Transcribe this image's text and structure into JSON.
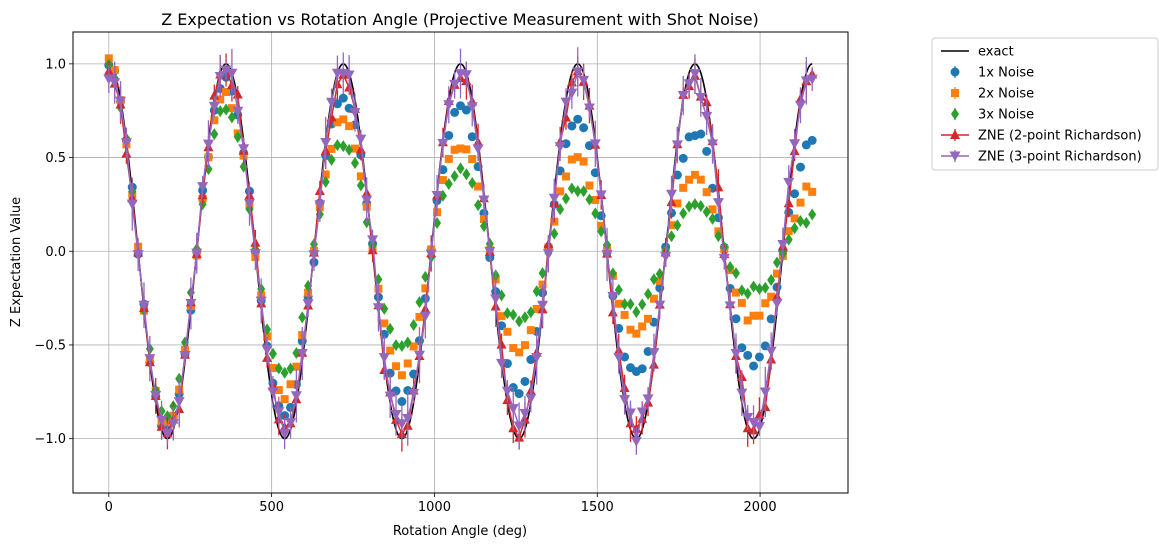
{
  "chart_data": {
    "type": "scatter",
    "title": "Z Expectation vs Rotation Angle (Projective Measurement with Shot Noise)",
    "xlabel": "Rotation Angle (deg)",
    "ylabel": "Z Expectation Value",
    "xlim": [
      -110,
      2270
    ],
    "ylim": [
      -1.29,
      1.17
    ],
    "xticks": [
      0,
      500,
      1000,
      1500,
      2000
    ],
    "yticks": [
      -1.0,
      -0.5,
      0.0,
      0.5,
      1.0
    ],
    "xtick_labels": [
      "0",
      "500",
      "1000",
      "1500",
      "2000"
    ],
    "ytick_labels": [
      "−1.0",
      "−0.5",
      "0.0",
      "0.5",
      "1.0"
    ],
    "grid": true,
    "legend_position": "outside-right",
    "x_range": [
      0,
      2160
    ],
    "num_points": 121,
    "series": [
      {
        "name": "exact",
        "style": "line",
        "color": "#000000",
        "noise_scale": 1
      },
      {
        "name": "1x Noise",
        "style": "errorbar",
        "marker": "circle",
        "color": "#1f77b4",
        "noise_scale": 1,
        "damping": 0.00025
      },
      {
        "name": "2x Noise",
        "style": "errorbar",
        "marker": "square",
        "color": "#ff7f0e",
        "noise_scale": 2,
        "damping": 0.00025
      },
      {
        "name": "3x Noise",
        "style": "errorbar",
        "marker": "diamond",
        "color": "#2ca02c",
        "noise_scale": 3,
        "damping": 0.00025
      },
      {
        "name": "ZNE (2-point Richardson)",
        "style": "line-errorbar",
        "marker": "triangle-up",
        "color": "#d62728",
        "noise_scale": 0,
        "error": 0.07
      },
      {
        "name": "ZNE (3-point Richardson)",
        "style": "line-errorbar",
        "marker": "triangle-down",
        "color": "#9467bd",
        "noise_scale": 0,
        "error": 0.1
      }
    ]
  }
}
